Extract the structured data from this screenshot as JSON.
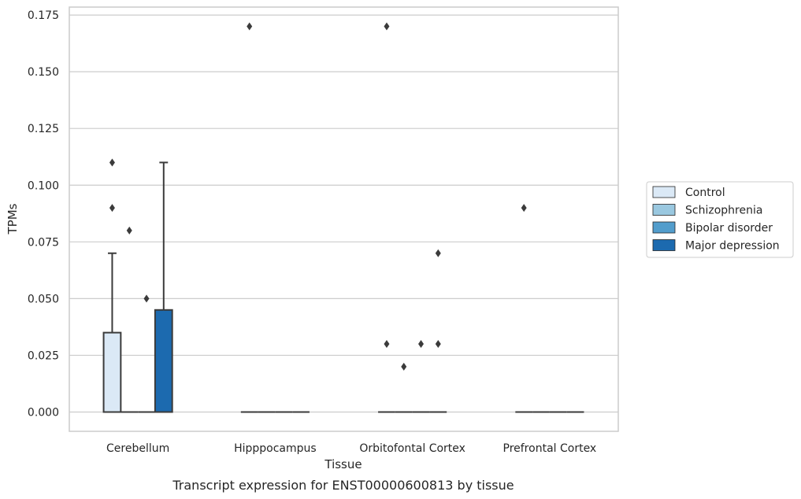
{
  "caption": "Transcript expression for ENST00000600813 by tissue",
  "chart_data": {
    "type": "box",
    "xlabel": "Tissue",
    "ylabel": "TPMs",
    "ylim": [
      -0.0085,
      0.1785
    ],
    "yticks": [
      "0.000",
      "0.025",
      "0.050",
      "0.075",
      "0.100",
      "0.125",
      "0.150",
      "0.175"
    ],
    "categories": [
      "Cerebellum",
      "Hipppocampus",
      "Orbitofontal Cortex",
      "Prefrontal Cortex"
    ],
    "grid": "horizontal",
    "legend_position": "right",
    "series": [
      {
        "name": "Control",
        "color": "#dbe9f6",
        "boxes": [
          {
            "q1": 0,
            "median": 0,
            "q3": 0.035,
            "whisker_low": 0,
            "whisker_high": 0.07,
            "outliers": [
              0.11,
              0.09
            ]
          },
          {
            "q1": 0,
            "median": 0,
            "q3": 0,
            "whisker_low": 0,
            "whisker_high": 0,
            "outliers": [
              0.17
            ]
          },
          {
            "q1": 0,
            "median": 0,
            "q3": 0,
            "whisker_low": 0,
            "whisker_high": 0,
            "outliers": [
              0.17,
              0.03
            ]
          },
          {
            "q1": 0,
            "median": 0,
            "q3": 0,
            "whisker_low": 0,
            "whisker_high": 0,
            "outliers": [
              0.09
            ]
          }
        ]
      },
      {
        "name": "Schizophrenia",
        "color": "#9ac8e0",
        "boxes": [
          {
            "q1": 0,
            "median": 0,
            "q3": 0,
            "whisker_low": 0,
            "whisker_high": 0,
            "outliers": [
              0.08
            ]
          },
          {
            "q1": 0,
            "median": 0,
            "q3": 0,
            "whisker_low": 0,
            "whisker_high": 0,
            "outliers": []
          },
          {
            "q1": 0,
            "median": 0,
            "q3": 0,
            "whisker_low": 0,
            "whisker_high": 0,
            "outliers": [
              0.02
            ]
          },
          {
            "q1": 0,
            "median": 0,
            "q3": 0,
            "whisker_low": 0,
            "whisker_high": 0,
            "outliers": []
          }
        ]
      },
      {
        "name": "Bipolar disorder",
        "color": "#529dcc",
        "boxes": [
          {
            "q1": 0,
            "median": 0,
            "q3": 0,
            "whisker_low": 0,
            "whisker_high": 0,
            "outliers": [
              0.05
            ]
          },
          {
            "q1": 0,
            "median": 0,
            "q3": 0,
            "whisker_low": 0,
            "whisker_high": 0,
            "outliers": []
          },
          {
            "q1": 0,
            "median": 0,
            "q3": 0,
            "whisker_low": 0,
            "whisker_high": 0,
            "outliers": [
              0.03
            ]
          },
          {
            "q1": 0,
            "median": 0,
            "q3": 0,
            "whisker_low": 0,
            "whisker_high": 0,
            "outliers": []
          }
        ]
      },
      {
        "name": "Major depression",
        "color": "#1c6aaf",
        "boxes": [
          {
            "q1": 0,
            "median": 0,
            "q3": 0.045,
            "whisker_low": 0,
            "whisker_high": 0.11,
            "outliers": []
          },
          {
            "q1": 0,
            "median": 0,
            "q3": 0,
            "whisker_low": 0,
            "whisker_high": 0,
            "outliers": []
          },
          {
            "q1": 0,
            "median": 0,
            "q3": 0,
            "whisker_low": 0,
            "whisker_high": 0,
            "outliers": [
              0.07,
              0.03
            ]
          },
          {
            "q1": 0,
            "median": 0,
            "q3": 0,
            "whisker_low": 0,
            "whisker_high": 0,
            "outliers": []
          }
        ]
      }
    ]
  }
}
